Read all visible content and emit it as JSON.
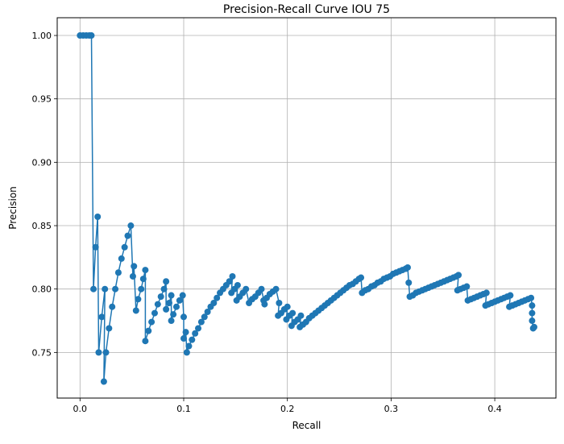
{
  "chart_data": {
    "type": "line",
    "title": "Precision-Recall Curve IOU 75",
    "xlabel": "Recall",
    "ylabel": "Precision",
    "xlim": [
      -0.022,
      0.459
    ],
    "ylim": [
      0.714,
      1.014
    ],
    "grid": true,
    "xticks": [
      0.0,
      0.1,
      0.2,
      0.3,
      0.4
    ],
    "xtick_labels": [
      "0.0",
      "0.1",
      "0.2",
      "0.3",
      "0.4"
    ],
    "yticks": [
      0.75,
      0.8,
      0.85,
      0.9,
      0.95,
      1.0
    ],
    "ytick_labels": [
      "0.75",
      "0.80",
      "0.85",
      "0.90",
      "0.95",
      "1.00"
    ],
    "series": [
      {
        "color": "#1f77b4",
        "marker": "circle",
        "x": [
          0.0,
          0.003,
          0.006,
          0.009,
          0.011,
          0.013,
          0.015,
          0.017,
          0.018,
          0.021,
          0.024,
          0.023,
          0.025,
          0.028,
          0.031,
          0.034,
          0.037,
          0.04,
          0.043,
          0.046,
          0.049,
          0.051,
          0.052,
          0.054,
          0.056,
          0.059,
          0.061,
          0.063,
          0.063,
          0.066,
          0.069,
          0.072,
          0.075,
          0.078,
          0.081,
          0.083,
          0.083,
          0.086,
          0.088,
          0.088,
          0.09,
          0.093,
          0.096,
          0.099,
          0.1,
          0.1,
          0.102,
          0.103,
          0.105,
          0.108,
          0.111,
          0.114,
          0.117,
          0.12,
          0.123,
          0.126,
          0.129,
          0.132,
          0.135,
          0.138,
          0.141,
          0.144,
          0.147,
          0.146,
          0.149,
          0.152,
          0.151,
          0.154,
          0.157,
          0.16,
          0.163,
          0.166,
          0.169,
          0.172,
          0.175,
          0.178,
          0.177,
          0.18,
          0.183,
          0.186,
          0.189,
          0.192,
          0.191,
          0.194,
          0.197,
          0.2,
          0.199,
          0.202,
          0.205,
          0.204,
          0.207,
          0.21,
          0.213,
          0.212,
          0.215,
          0.218,
          0.221,
          0.224,
          0.227,
          0.23,
          0.233,
          0.236,
          0.239,
          0.242,
          0.245,
          0.248,
          0.251,
          0.254,
          0.257,
          0.26,
          0.263,
          0.266,
          0.269,
          0.271,
          0.272,
          0.275,
          0.278,
          0.281,
          0.284,
          0.287,
          0.29,
          0.293,
          0.296,
          0.299,
          0.302,
          0.305,
          0.308,
          0.311,
          0.314,
          0.316,
          0.317,
          0.318,
          0.321,
          0.324,
          0.327,
          0.33,
          0.333,
          0.336,
          0.339,
          0.342,
          0.345,
          0.348,
          0.351,
          0.354,
          0.357,
          0.36,
          0.363,
          0.365,
          0.364,
          0.367,
          0.37,
          0.373,
          0.374,
          0.377,
          0.38,
          0.383,
          0.386,
          0.389,
          0.392,
          0.391,
          0.394,
          0.397,
          0.4,
          0.403,
          0.406,
          0.409,
          0.412,
          0.415,
          0.414,
          0.417,
          0.42,
          0.423,
          0.426,
          0.429,
          0.432,
          0.435,
          0.436,
          0.436,
          0.436,
          0.437,
          0.438
        ],
        "y": [
          1.0,
          1.0,
          1.0,
          1.0,
          1.0,
          0.8,
          0.833,
          0.857,
          0.75,
          0.778,
          0.8,
          0.727,
          0.75,
          0.769,
          0.786,
          0.8,
          0.813,
          0.824,
          0.833,
          0.842,
          0.85,
          0.81,
          0.818,
          0.783,
          0.792,
          0.8,
          0.808,
          0.815,
          0.759,
          0.767,
          0.774,
          0.781,
          0.788,
          0.794,
          0.8,
          0.806,
          0.784,
          0.789,
          0.795,
          0.775,
          0.78,
          0.786,
          0.791,
          0.795,
          0.778,
          0.761,
          0.766,
          0.75,
          0.755,
          0.76,
          0.765,
          0.769,
          0.774,
          0.778,
          0.782,
          0.786,
          0.789,
          0.793,
          0.797,
          0.8,
          0.803,
          0.806,
          0.81,
          0.797,
          0.8,
          0.803,
          0.791,
          0.794,
          0.797,
          0.8,
          0.789,
          0.792,
          0.794,
          0.797,
          0.8,
          0.788,
          0.791,
          0.793,
          0.796,
          0.798,
          0.8,
          0.789,
          0.779,
          0.781,
          0.784,
          0.786,
          0.776,
          0.779,
          0.781,
          0.771,
          0.774,
          0.776,
          0.779,
          0.77,
          0.772,
          0.774,
          0.777,
          0.779,
          0.781,
          0.783,
          0.785,
          0.787,
          0.789,
          0.791,
          0.793,
          0.795,
          0.797,
          0.799,
          0.801,
          0.803,
          0.804,
          0.806,
          0.808,
          0.809,
          0.797,
          0.799,
          0.8,
          0.802,
          0.803,
          0.805,
          0.806,
          0.808,
          0.809,
          0.81,
          0.812,
          0.813,
          0.814,
          0.815,
          0.816,
          0.817,
          0.805,
          0.794,
          0.795,
          0.797,
          0.798,
          0.799,
          0.8,
          0.801,
          0.802,
          0.803,
          0.804,
          0.805,
          0.806,
          0.807,
          0.808,
          0.809,
          0.81,
          0.811,
          0.799,
          0.8,
          0.801,
          0.802,
          0.791,
          0.792,
          0.793,
          0.794,
          0.795,
          0.796,
          0.797,
          0.787,
          0.788,
          0.789,
          0.79,
          0.791,
          0.792,
          0.793,
          0.794,
          0.795,
          0.786,
          0.787,
          0.788,
          0.789,
          0.79,
          0.791,
          0.792,
          0.793,
          0.787,
          0.781,
          0.775,
          0.769,
          0.77
        ]
      }
    ]
  }
}
